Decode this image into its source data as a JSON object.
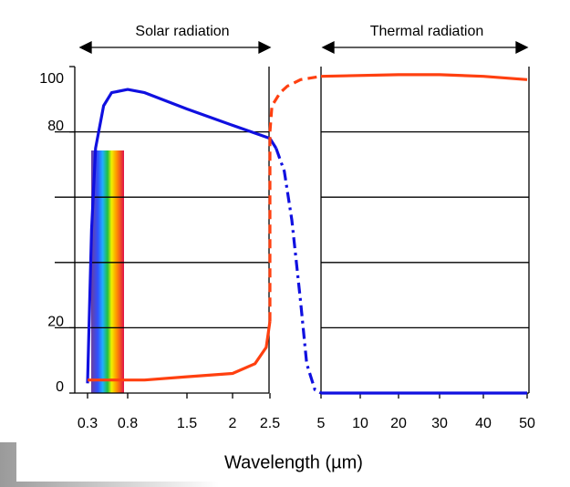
{
  "chart_data": {
    "type": "line",
    "xlabel": "Wavelength (µm)",
    "annotations": [
      "Solar radiation",
      "Thermal radiation"
    ],
    "xticks": [
      0.3,
      0.8,
      1.5,
      2.0,
      2.5,
      5,
      10,
      20,
      30,
      40,
      50
    ],
    "ylim": [
      0,
      100
    ],
    "yticks": [
      0,
      20,
      80,
      100
    ],
    "gridlines": [
      20,
      40,
      60,
      80
    ],
    "series": [
      {
        "color": "#1010e0",
        "dash": "solid",
        "x": [
          0.3,
          0.35,
          0.4,
          0.5,
          0.6,
          0.8,
          1.0,
          1.5,
          2.0,
          2.5,
          2.8
        ],
        "values": [
          3,
          50,
          75,
          88,
          92,
          93,
          92,
          87,
          82,
          78,
          75
        ]
      },
      {
        "color": "#1010e0",
        "dash": "dashdot",
        "x": [
          2.8,
          3.2,
          3.57,
          4.0,
          4.3,
          4.7,
          5
        ],
        "values": [
          75,
          68,
          53,
          28,
          9,
          1,
          0
        ]
      },
      {
        "color": "#1010e0",
        "dash": "solid",
        "x": [
          5,
          10,
          20,
          30,
          40,
          50
        ],
        "values": [
          0,
          0,
          0,
          0,
          0,
          0
        ]
      },
      {
        "color": "#ff4010",
        "dash": "solid",
        "x": [
          0.3,
          1.0,
          1.5,
          2.0,
          2.3,
          2.45,
          2.5
        ],
        "values": [
          4,
          4,
          5,
          6,
          9,
          14,
          22
        ]
      },
      {
        "color": "#ff4010",
        "dash": "dashed",
        "x": [
          2.5,
          2.5,
          2.6,
          3.0,
          3.35,
          4.0,
          5
        ],
        "values": [
          22,
          80,
          88,
          92,
          94,
          96,
          97
        ]
      },
      {
        "color": "#ff4010",
        "dash": "solid",
        "x": [
          5,
          20,
          30,
          40,
          50
        ],
        "values": [
          97,
          97.5,
          97.5,
          97,
          96
        ]
      }
    ]
  }
}
